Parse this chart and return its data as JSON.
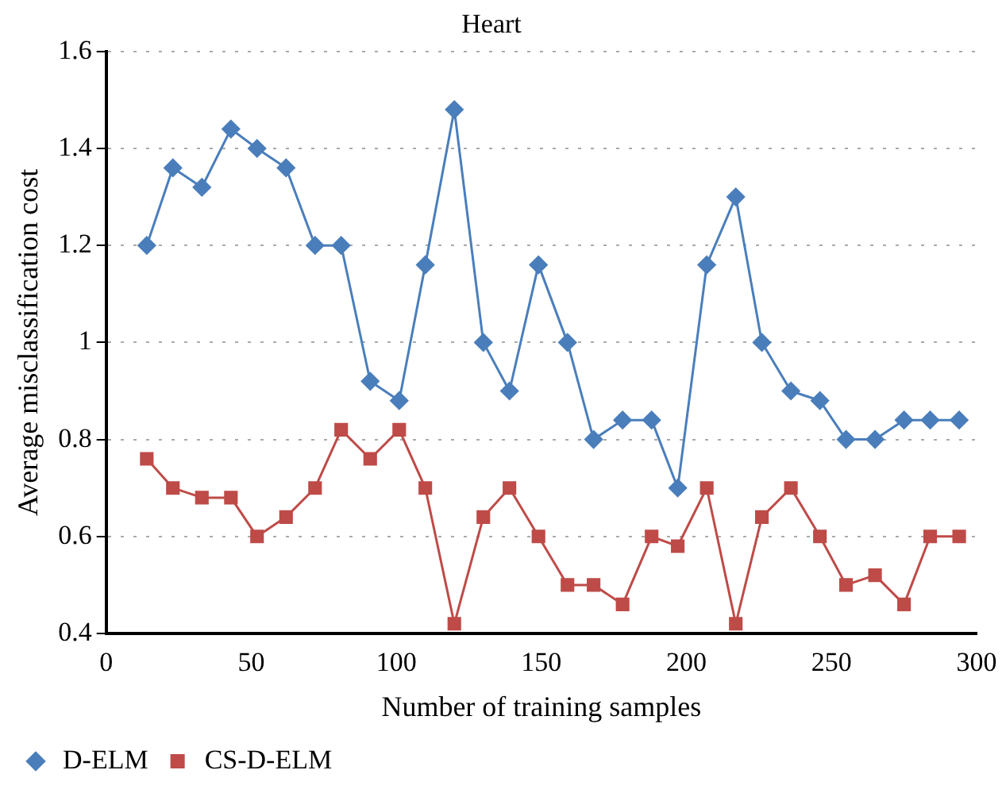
{
  "chart_data": {
    "type": "line",
    "title": "Heart",
    "xlabel": "Number of training samples",
    "ylabel": "Average misclassification cost",
    "x": [
      14,
      23,
      33,
      43,
      52,
      62,
      72,
      81,
      91,
      101,
      110,
      120,
      130,
      139,
      149,
      159,
      168,
      178,
      188,
      197,
      207,
      217,
      226,
      236,
      246,
      255,
      265,
      275,
      284,
      294
    ],
    "series": [
      {
        "name": "D-ELM",
        "color": "#4a7ebb",
        "marker": "diamond",
        "values": [
          1.2,
          1.36,
          1.32,
          1.44,
          1.4,
          1.36,
          1.2,
          1.2,
          0.92,
          0.88,
          1.16,
          1.48,
          1.0,
          0.9,
          1.16,
          1.0,
          0.8,
          0.84,
          0.84,
          0.7,
          1.16,
          1.3,
          1.0,
          0.9,
          0.88,
          0.8,
          0.8,
          0.84,
          0.84,
          0.84
        ]
      },
      {
        "name": "CS-D-ELM",
        "color": "#be4b48",
        "marker": "square",
        "values": [
          0.76,
          0.7,
          0.68,
          0.68,
          0.6,
          0.64,
          0.7,
          0.82,
          0.76,
          0.82,
          0.7,
          0.42,
          0.64,
          0.7,
          0.6,
          0.5,
          0.5,
          0.46,
          0.6,
          0.58,
          0.7,
          0.42,
          0.64,
          0.7,
          0.6,
          0.5,
          0.52,
          0.46,
          0.6,
          0.6
        ]
      }
    ],
    "xlim": [
      0,
      300
    ],
    "xticks": [
      0,
      50,
      100,
      150,
      200,
      250,
      300
    ],
    "ylim": [
      0.4,
      1.6
    ],
    "yticks": [
      0.4,
      0.6,
      0.8,
      1,
      1.2,
      1.4,
      1.6
    ],
    "grid": "y",
    "legend": "bottom left"
  }
}
